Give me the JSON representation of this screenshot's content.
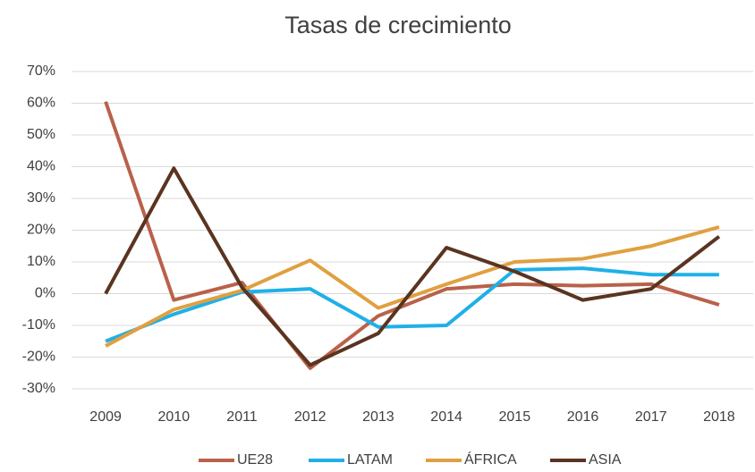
{
  "chart_data": {
    "type": "line",
    "title": "Tasas de crecimiento",
    "categories": [
      "2009",
      "2010",
      "2011",
      "2012",
      "2013",
      "2014",
      "2015",
      "2016",
      "2017",
      "2018"
    ],
    "series": [
      {
        "name": "UE28",
        "color": "#b9614a",
        "values": [
          60.5,
          -2,
          3.5,
          -23.5,
          -7,
          1.5,
          3,
          2.5,
          3,
          -3.5
        ]
      },
      {
        "name": "LATAM",
        "color": "#1fb0e8",
        "values": [
          -15,
          -6.5,
          0.5,
          1.5,
          -10.5,
          -10,
          7.5,
          8,
          6,
          6
        ]
      },
      {
        "name": "ÁFRICA",
        "color": "#e0a040",
        "values": [
          -16.5,
          -5,
          1,
          10.5,
          -4.5,
          3,
          10,
          11,
          15,
          21
        ]
      },
      {
        "name": "ASIA",
        "color": "#5a3420",
        "values": [
          0,
          39.5,
          2,
          -22.5,
          -12.5,
          14.5,
          7,
          -2,
          1.5,
          18
        ]
      }
    ],
    "ylim": [
      -30,
      70
    ],
    "yticks": [
      {
        "value": -30,
        "label": "-30%"
      },
      {
        "value": -20,
        "label": "-20%"
      },
      {
        "value": -10,
        "label": "-10%"
      },
      {
        "value": 0,
        "label": "0%"
      },
      {
        "value": 10,
        "label": "10%"
      },
      {
        "value": 20,
        "label": "20%"
      },
      {
        "value": 30,
        "label": "30%"
      },
      {
        "value": 40,
        "label": "40%"
      },
      {
        "value": 50,
        "label": "50%"
      },
      {
        "value": 60,
        "label": "60%"
      },
      {
        "value": 70,
        "label": "70%"
      }
    ],
    "grid": true,
    "legend": "bottom"
  }
}
